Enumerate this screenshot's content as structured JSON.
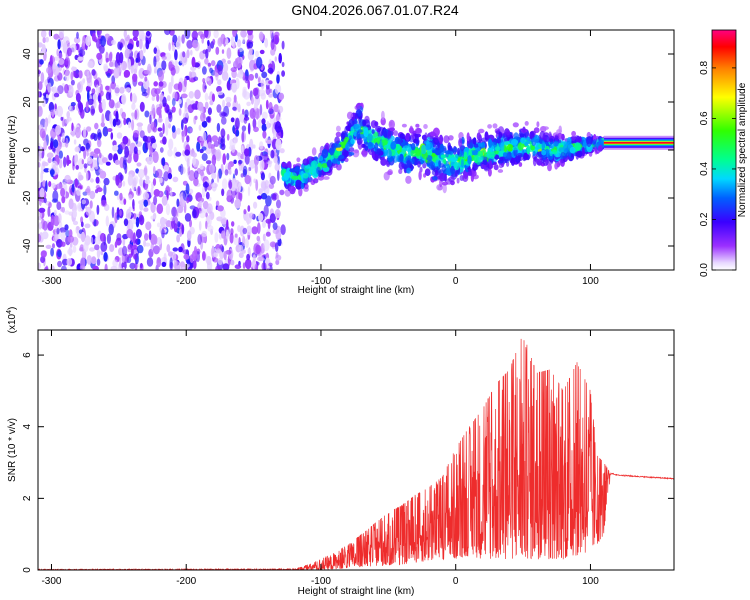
{
  "title": "GN04.2026.067.01.07.R24",
  "chart_data": [
    {
      "type": "heatmap",
      "xlabel": "Height of straight line (km)",
      "ylabel": "Frequency (Hz)",
      "xlim": [
        -310,
        162
      ],
      "ylim": [
        -50,
        50
      ],
      "xticks": [
        -300,
        -200,
        -100,
        0,
        100
      ],
      "yticks": [
        -40,
        -20,
        0,
        20,
        40
      ],
      "colorbar": {
        "label": "Normalized spectral amplitude",
        "range": [
          0.0,
          0.95
        ],
        "ticks": [
          "0.0",
          "0.2",
          "0.4",
          "0.6",
          "0.8"
        ],
        "tick_values": [
          0.0,
          0.2,
          0.4,
          0.6,
          0.8
        ]
      },
      "noise_region_x": [
        -310,
        -128
      ],
      "ridge": {
        "x": [
          -128,
          -120,
          -110,
          -100,
          -90,
          -80,
          -72,
          -65,
          -55,
          -45,
          -35,
          -25,
          -15,
          -5,
          5,
          15,
          25,
          40,
          55,
          70,
          85,
          100,
          110,
          130,
          162
        ],
        "freq": [
          -10,
          -12,
          -9,
          -6,
          -2,
          4,
          10,
          5,
          3,
          0,
          -2,
          0,
          -3,
          -5,
          -4,
          -2,
          0,
          1,
          2,
          0,
          1,
          2,
          3,
          3,
          3
        ],
        "spread": [
          8,
          9,
          9,
          9,
          10,
          12,
          14,
          13,
          13,
          14,
          14,
          14,
          15,
          14,
          14,
          13,
          13,
          12,
          12,
          10,
          8,
          5,
          3,
          2,
          2
        ]
      },
      "tone_line": {
        "x": [
          110,
          162
        ],
        "freq": 3,
        "amplitude": 0.95
      }
    },
    {
      "type": "line",
      "xlabel": "Height of straight line (km)",
      "ylabel": "SNR (10 * v/v)",
      "y_multiplier": "(x10",
      "y_multiplier_exp": "4",
      "y_multiplier_close": ")",
      "xlim": [
        -310,
        162
      ],
      "ylim": [
        0,
        6.7
      ],
      "xticks": [
        -300,
        -200,
        -100,
        0,
        100
      ],
      "yticks": [
        0,
        2,
        4,
        6
      ],
      "color": "#ee2c2c",
      "envelope": {
        "x": [
          -310,
          -120,
          -110,
          -100,
          -90,
          -80,
          -70,
          -60,
          -50,
          -40,
          -30,
          -20,
          -10,
          0,
          10,
          20,
          30,
          40,
          50,
          60,
          70,
          80,
          90,
          100,
          105,
          110,
          115,
          120,
          140,
          162
        ],
        "max": [
          0.02,
          0.03,
          0.15,
          0.3,
          0.5,
          0.7,
          1.0,
          1.3,
          1.6,
          1.8,
          2.1,
          2.3,
          2.6,
          3.4,
          4.0,
          4.5,
          5.2,
          5.6,
          6.6,
          5.5,
          5.6,
          5.0,
          5.8,
          5.0,
          3.2,
          3.0,
          2.7,
          2.65,
          2.6,
          2.55
        ],
        "min": [
          0.0,
          0.0,
          0.0,
          0.0,
          0.02,
          0.05,
          0.08,
          0.1,
          0.12,
          0.15,
          0.2,
          0.25,
          0.3,
          0.3,
          0.4,
          0.3,
          0.3,
          0.3,
          0.3,
          0.3,
          0.3,
          0.3,
          0.4,
          0.5,
          0.7,
          1.0,
          2.6,
          2.6,
          2.55,
          2.5
        ]
      }
    }
  ]
}
